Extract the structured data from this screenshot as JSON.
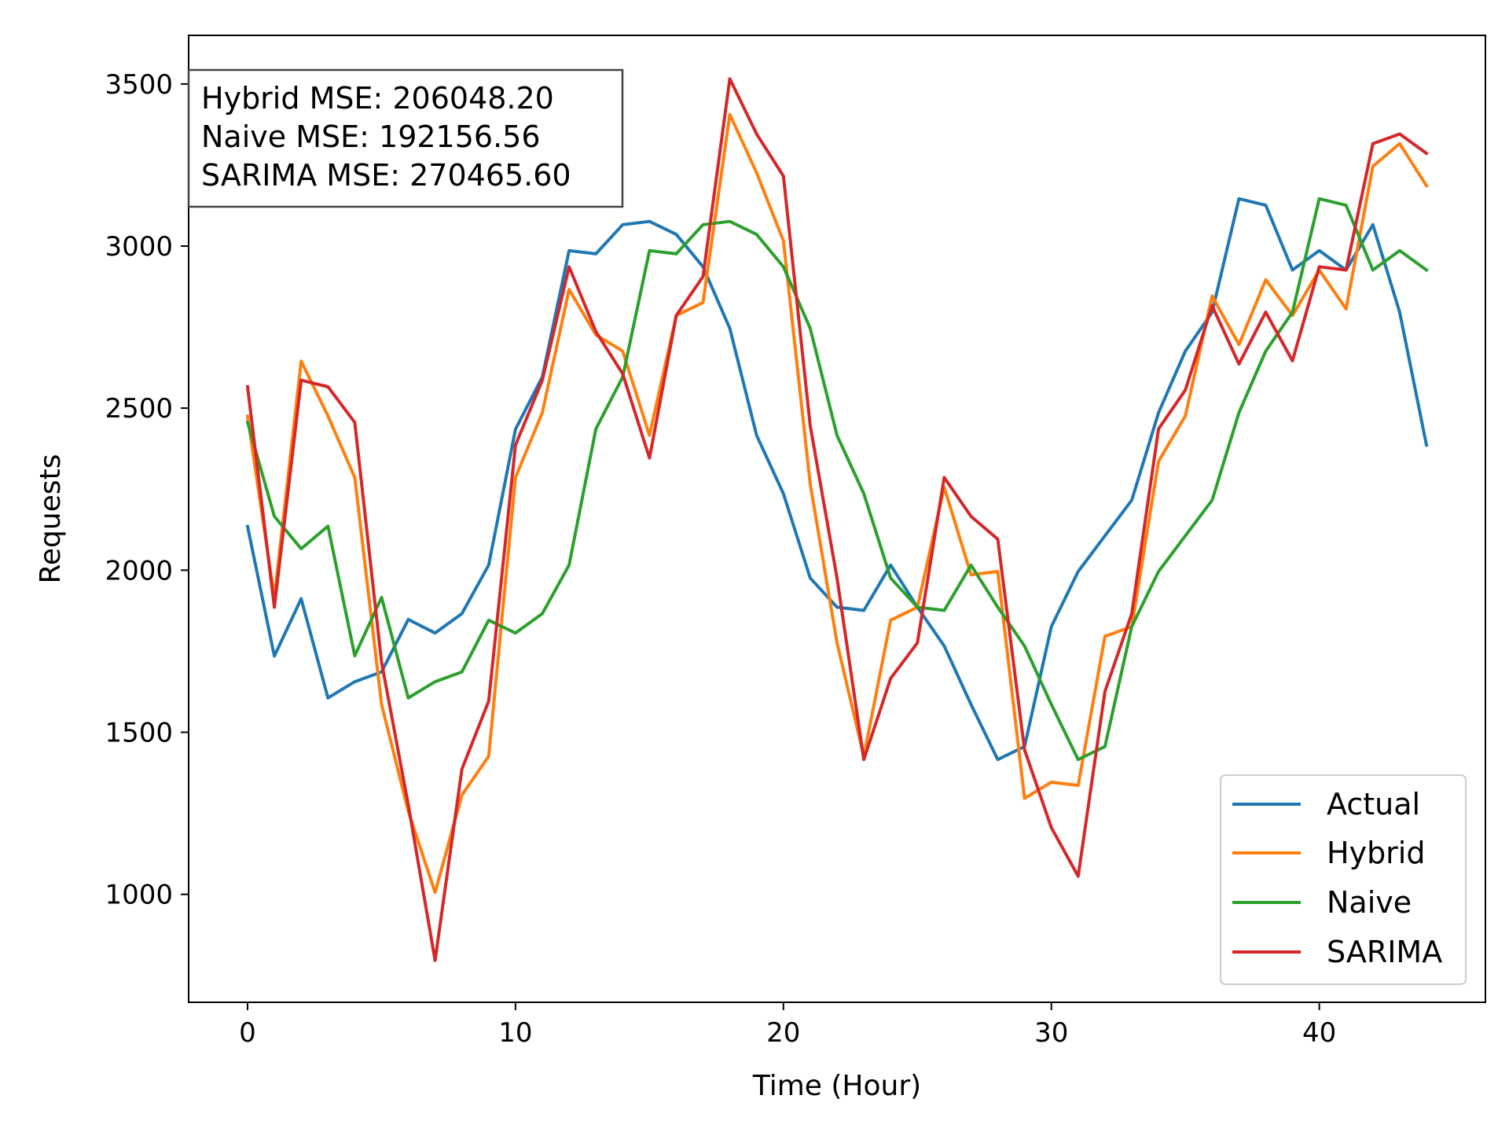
{
  "chart_data": {
    "type": "line",
    "xlabel": "Time  (Hour)",
    "ylabel": "Requests",
    "xlim": [
      -2.2,
      46.2
    ],
    "ylim": [
      667,
      3650
    ],
    "xticks": [
      0,
      10,
      20,
      30,
      40
    ],
    "yticks": [
      1000,
      1500,
      2000,
      2500,
      3000,
      3500
    ],
    "grid": false,
    "legend_position": "lower-right",
    "annotation": [
      "Hybrid MSE: 206048.20",
      "Naive MSE: 192156.56",
      "SARIMA MSE: 270465.60"
    ],
    "x": [
      0,
      1,
      2,
      3,
      4,
      5,
      6,
      7,
      8,
      9,
      10,
      11,
      12,
      13,
      14,
      15,
      16,
      17,
      18,
      19,
      20,
      21,
      22,
      23,
      24,
      25,
      26,
      27,
      28,
      29,
      30,
      31,
      32,
      33,
      34,
      35,
      36,
      37,
      38,
      39,
      40,
      41,
      42,
      43,
      44
    ],
    "series": [
      {
        "name": "Actual",
        "color": "#1f77b4",
        "values": [
          2135,
          1735,
          1912,
          1606,
          1656,
          1686,
          1848,
          1806,
          1866,
          2016,
          2435,
          2596,
          2986,
          2976,
          3066,
          3076,
          3036,
          2936,
          2746,
          2416,
          2236,
          1976,
          1886,
          1876,
          2016,
          1886,
          1766,
          1586,
          1416,
          1456,
          1826,
          1996,
          2106,
          2216,
          2486,
          2676,
          2796,
          3146,
          3126,
          2926,
          2986,
          2926,
          3066,
          2796,
          2386
        ]
      },
      {
        "name": "Hybrid",
        "color": "#ff7f0e",
        "values": [
          2475,
          1916,
          2645,
          2476,
          2286,
          1586,
          1256,
          1006,
          1306,
          1426,
          2286,
          2486,
          2866,
          2726,
          2676,
          2416,
          2786,
          2826,
          3406,
          3226,
          3016,
          2266,
          1776,
          1426,
          1846,
          1886,
          2256,
          1986,
          1996,
          1296,
          1346,
          1336,
          1796,
          1826,
          2336,
          2476,
          2846,
          2696,
          2896,
          2786,
          2926,
          2806,
          3246,
          3316,
          3186
        ]
      },
      {
        "name": "Naive",
        "color": "#2ca02c",
        "values": [
          2456,
          2166,
          2066,
          2136,
          1736,
          1916,
          1606,
          1656,
          1686,
          1846,
          1806,
          1866,
          2016,
          2436,
          2596,
          2986,
          2976,
          3066,
          3076,
          3036,
          2936,
          2746,
          2416,
          2236,
          1976,
          1886,
          1876,
          2016,
          1886,
          1766,
          1586,
          1416,
          1456,
          1826,
          1996,
          2106,
          2216,
          2486,
          2676,
          2796,
          3146,
          3126,
          2926,
          2986,
          2926
        ]
      },
      {
        "name": "SARIMA",
        "color": "#d62728",
        "values": [
          2566,
          1886,
          2586,
          2566,
          2456,
          1716,
          1276,
          796,
          1386,
          1596,
          2386,
          2586,
          2936,
          2736,
          2606,
          2346,
          2786,
          2906,
          3516,
          3346,
          3216,
          2446,
          1976,
          1416,
          1666,
          1776,
          2286,
          2166,
          2096,
          1446,
          1206,
          1056,
          1626,
          1866,
          2436,
          2556,
          2816,
          2636,
          2796,
          2646,
          2936,
          2926,
          3316,
          3346,
          3286
        ]
      }
    ]
  }
}
